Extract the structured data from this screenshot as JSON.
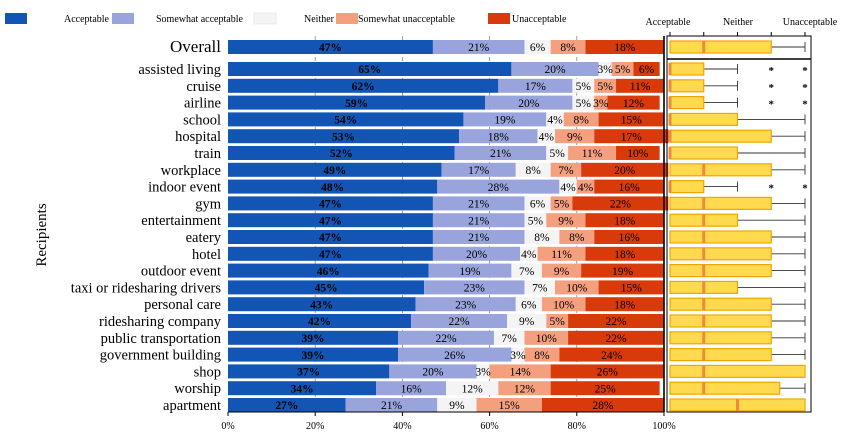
{
  "chart_data": {
    "type": "bar",
    "orientation": "horizontal",
    "stacked": true,
    "ylabel": "Recipients",
    "xlabel": "",
    "xlim": [
      0,
      100
    ],
    "x_tick_labels": [
      "0%",
      "20%",
      "40%",
      "60%",
      "80%",
      "100%"
    ],
    "grid": "vertical dashed",
    "legend_position": "top",
    "legend": [
      "Acceptable",
      "Somewhat acceptable",
      "Neither",
      "Somewhat unacceptable",
      "Unacceptable"
    ],
    "colors": {
      "acceptable": "#1255b4",
      "somewhat_acceptable": "#9aa4dc",
      "neither": "#f4f4f4",
      "somewhat_unacceptable": "#f4a07f",
      "unacceptable": "#d93a0a",
      "box_fill": "#ffd94e",
      "box_edge": "#f2a600",
      "median": "#ee8a3a"
    },
    "categories": [
      "Overall",
      "assisted living",
      "cruise",
      "airline",
      "school",
      "hospital",
      "train",
      "workplace",
      "indoor event",
      "gym",
      "entertainment",
      "eatery",
      "hotel",
      "outdoor event",
      "taxi or ridesharing drivers",
      "personal care",
      "ridesharing company",
      "public transportation",
      "government building",
      "shop",
      "worship",
      "apartment"
    ],
    "series": [
      {
        "name": "Acceptable",
        "values": [
          47,
          65,
          62,
          59,
          54,
          53,
          52,
          49,
          48,
          47,
          47,
          47,
          47,
          46,
          45,
          43,
          42,
          39,
          39,
          37,
          34,
          27
        ]
      },
      {
        "name": "Somewhat acceptable",
        "values": [
          21,
          20,
          17,
          20,
          19,
          18,
          21,
          17,
          28,
          21,
          21,
          21,
          20,
          19,
          23,
          23,
          22,
          22,
          26,
          20,
          16,
          21
        ]
      },
      {
        "name": "Neither",
        "values": [
          6,
          3,
          5,
          5,
          4,
          4,
          5,
          8,
          4,
          6,
          5,
          8,
          4,
          7,
          7,
          6,
          9,
          7,
          3,
          3,
          12,
          9
        ]
      },
      {
        "name": "Somewhat unacceptable",
        "values": [
          8,
          5,
          5,
          3,
          8,
          9,
          11,
          7,
          4,
          5,
          9,
          8,
          11,
          9,
          10,
          10,
          5,
          10,
          8,
          14,
          12,
          15
        ]
      },
      {
        "name": "Unacceptable",
        "values": [
          18,
          6,
          11,
          12,
          15,
          17,
          10,
          20,
          16,
          22,
          18,
          16,
          18,
          19,
          15,
          18,
          22,
          22,
          24,
          26,
          25,
          28
        ]
      }
    ],
    "data_labels": {
      "Acceptable": [
        "47%",
        "65%",
        "62%",
        "59%",
        "54%",
        "53%",
        "52%",
        "49%",
        "48%",
        "47%",
        "47%",
        "47%",
        "47%",
        "46%",
        "45%",
        "43%",
        "42%",
        "39%",
        "39%",
        "37%",
        "34%",
        "27%"
      ],
      "Somewhat acceptable": [
        "21%",
        "20%",
        "17%",
        "20%",
        "19%",
        "18%",
        "21%",
        "17%",
        "28%",
        "21%",
        "21%",
        "21%",
        "20%",
        "19%",
        "23%",
        "23%",
        "22%",
        "22%",
        "26%",
        "20%",
        "16%",
        "21%"
      ],
      "Neither": [
        "6%",
        "3%",
        "5%",
        "5%",
        "4%",
        "4%",
        "5%",
        "8%",
        "4%",
        "6%",
        "5%",
        "8%",
        "4%",
        "7%",
        "7%",
        "6%",
        "9%",
        "7%",
        "3%",
        "3%",
        "12%",
        "9%"
      ],
      "Somewhat unacceptable": [
        "8%",
        "5%",
        "5%",
        "3%",
        "8%",
        "9%",
        "11%",
        "7%",
        "4%",
        "5%",
        "9%",
        "8%",
        "11%",
        "9%",
        "10%",
        "10%",
        "5%",
        "10%",
        "8%",
        "14%",
        "12%",
        "15%"
      ],
      "Unacceptable": [
        "18%",
        "6%",
        "11%",
        "12%",
        "15%",
        "17%",
        "10%",
        "20%",
        "16%",
        "22%",
        "18%",
        "16%",
        "18%",
        "19%",
        "15%",
        "18%",
        "22%",
        "22%",
        "24%",
        "26%",
        "25%",
        "28%"
      ]
    },
    "box_panel": {
      "type": "boxplot",
      "scale_labels": [
        "Acceptable",
        "Neither",
        "Unacceptable"
      ],
      "scale": [
        1,
        5
      ],
      "q1": [
        1,
        1,
        1,
        1,
        1,
        1,
        1,
        1,
        1,
        1,
        1,
        1,
        1,
        1,
        1,
        1,
        1,
        1,
        1,
        1,
        1,
        1
      ],
      "median": [
        2,
        1,
        1,
        1,
        1,
        1,
        1,
        2,
        1,
        2,
        2,
        2,
        2,
        2,
        2,
        2,
        2,
        2,
        2,
        2,
        2,
        3
      ],
      "q3": [
        4,
        2,
        2,
        2,
        3,
        4,
        3,
        4,
        2,
        4,
        3,
        4,
        4,
        4,
        3,
        4,
        4,
        4,
        4,
        5,
        4.25,
        5
      ],
      "whisker_high": [
        5,
        3,
        3,
        3,
        5,
        5,
        5,
        5,
        3,
        5,
        5,
        5,
        5,
        5,
        5,
        5,
        5,
        5,
        5,
        5,
        5,
        5
      ],
      "outlier_stars": [
        false,
        true,
        true,
        true,
        false,
        false,
        false,
        false,
        true,
        false,
        false,
        false,
        false,
        false,
        false,
        false,
        false,
        false,
        false,
        false,
        false,
        false
      ],
      "star_symbol": "*"
    }
  }
}
